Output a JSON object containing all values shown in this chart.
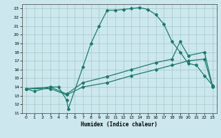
{
  "background_color": "#cce8ee",
  "grid_color": "#aacccc",
  "line_color": "#1a7a6e",
  "xlabel": "Humidex (Indice chaleur)",
  "xlim": [
    -0.5,
    23.5
  ],
  "ylim": [
    11,
    23.5
  ],
  "xticks": [
    0,
    1,
    2,
    3,
    4,
    5,
    6,
    7,
    8,
    9,
    10,
    11,
    12,
    13,
    14,
    15,
    16,
    17,
    18,
    19,
    20,
    21,
    22,
    23
  ],
  "yticks": [
    11,
    12,
    13,
    14,
    15,
    16,
    17,
    18,
    19,
    20,
    21,
    22,
    23
  ],
  "curve1_x": [
    0,
    1,
    3,
    4,
    5,
    5.2,
    7,
    8,
    9,
    10,
    11,
    12,
    13,
    14,
    15,
    16,
    17,
    18,
    19,
    20,
    21,
    22,
    23
  ],
  "curve1_y": [
    13.8,
    13.5,
    14.0,
    14.0,
    12.5,
    11.5,
    16.3,
    19.0,
    21.0,
    22.8,
    22.8,
    22.9,
    23.0,
    23.1,
    22.9,
    22.3,
    21.2,
    19.2,
    18.0,
    16.7,
    16.5,
    15.3,
    14.2
  ],
  "curve2_x": [
    0,
    3,
    5,
    7,
    10,
    13,
    16,
    18,
    19,
    20,
    22,
    23
  ],
  "curve2_y": [
    13.8,
    14.0,
    13.2,
    14.5,
    15.2,
    16.0,
    16.8,
    17.2,
    19.2,
    17.6,
    18.0,
    14.1
  ],
  "curve3_x": [
    0,
    3,
    5,
    7,
    10,
    13,
    16,
    18,
    20,
    22,
    23
  ],
  "curve3_y": [
    13.8,
    13.8,
    13.1,
    14.0,
    14.5,
    15.3,
    16.0,
    16.5,
    17.0,
    17.2,
    14.0
  ]
}
